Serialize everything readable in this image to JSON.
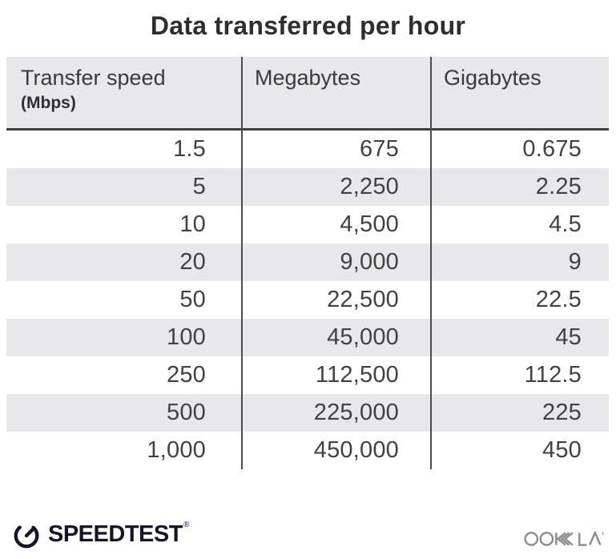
{
  "title": "Data transferred per hour",
  "table": {
    "columns": [
      {
        "label": "Transfer speed",
        "sublabel": "(Mbps)"
      },
      {
        "label": "Megabytes",
        "sublabel": ""
      },
      {
        "label": "Gigabytes",
        "sublabel": ""
      }
    ],
    "rows": [
      [
        "1.5",
        "675",
        "0.675"
      ],
      [
        "5",
        "2,250",
        "2.25"
      ],
      [
        "10",
        "4,500",
        "4.5"
      ],
      [
        "20",
        "9,000",
        "9"
      ],
      [
        "50",
        "22,500",
        "22.5"
      ],
      [
        "100",
        "45,000",
        "45"
      ],
      [
        "250",
        "112,500",
        "112.5"
      ],
      [
        "500",
        "225,000",
        "225"
      ],
      [
        "1,000",
        "450,000",
        "450"
      ]
    ]
  },
  "footer": {
    "speedtest_label": "SPEEDTEST",
    "speedtest_trademark": "®",
    "ookla_label": "OOKLA"
  },
  "colors": {
    "stripe_bg": "#e8e8eb",
    "header_bg": "#e8e8eb",
    "vertical_divider": "#4c4c4c",
    "header_rule": "#3f3f3f",
    "title_text": "#2e2e2e",
    "cell_text": "#414141",
    "speedtest_logo": "#15152a",
    "ookla_logo": "#8f8f8f"
  },
  "chart_data": {
    "type": "table",
    "title": "Data transferred per hour",
    "columns": [
      "Transfer speed (Mbps)",
      "Megabytes",
      "Gigabytes"
    ],
    "rows": [
      [
        1.5,
        675,
        0.675
      ],
      [
        5,
        2250,
        2.25
      ],
      [
        10,
        4500,
        4.5
      ],
      [
        20,
        9000,
        9
      ],
      [
        50,
        22500,
        22.5
      ],
      [
        100,
        45000,
        45
      ],
      [
        250,
        112500,
        112.5
      ],
      [
        500,
        225000,
        225
      ],
      [
        1000,
        450000,
        450
      ]
    ],
    "notes": "Rows alternate white / light-gray striping; numbers right-aligned; branding Speedtest (left) and Ookla (right) below table"
  }
}
